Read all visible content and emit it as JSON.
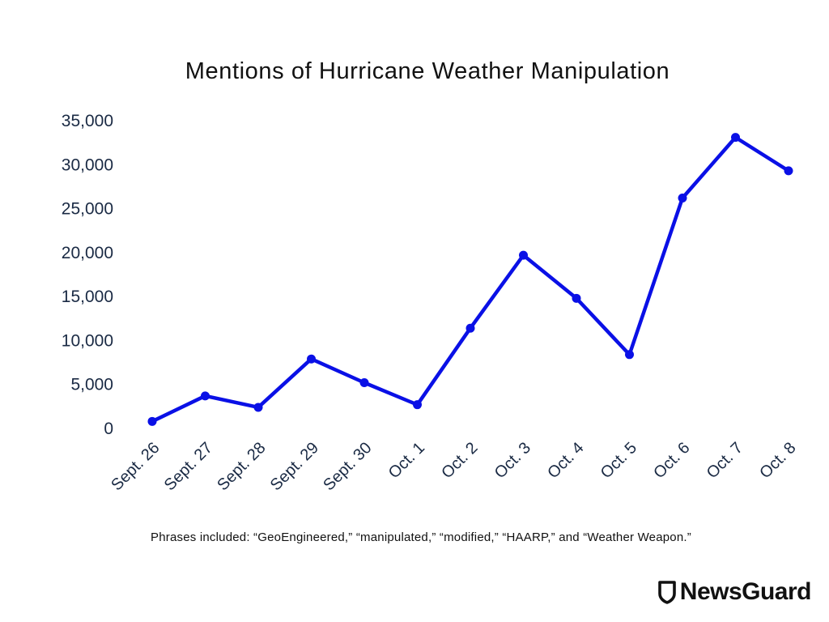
{
  "chart_data": {
    "type": "line",
    "title": "Mentions of Hurricane Weather Manipulation",
    "xlabel": "",
    "ylabel": "",
    "categories": [
      "Sept. 26",
      "Sept. 27",
      "Sept. 28",
      "Sept. 29",
      "Sept. 30",
      "Oct. 1",
      "Oct. 2",
      "Oct. 3",
      "Oct. 4",
      "Oct. 5",
      "Oct. 6",
      "Oct. 7",
      "Oct. 8"
    ],
    "series": [
      {
        "values": [
          800,
          3700,
          2400,
          7900,
          5200,
          2700,
          11400,
          19700,
          14800,
          8400,
          26200,
          33100,
          29300
        ],
        "color": "#0a10e6"
      }
    ],
    "ylim": [
      0,
      35000
    ],
    "yticks": [
      0,
      5000,
      10000,
      15000,
      20000,
      25000,
      30000,
      35000
    ],
    "ytick_labels": [
      "0",
      "5,000",
      "10,000",
      "15,000",
      "20,000",
      "25,000",
      "30,000",
      "35,000"
    ],
    "grid": false,
    "legend": "none"
  },
  "footnote": "Phrases included: “GeoEngineered,” “manipulated,” “modified,” “HAARP,” and “Weather Weapon.”",
  "brand": {
    "name": "NewsGuard",
    "logo_icon": "shield-icon"
  }
}
